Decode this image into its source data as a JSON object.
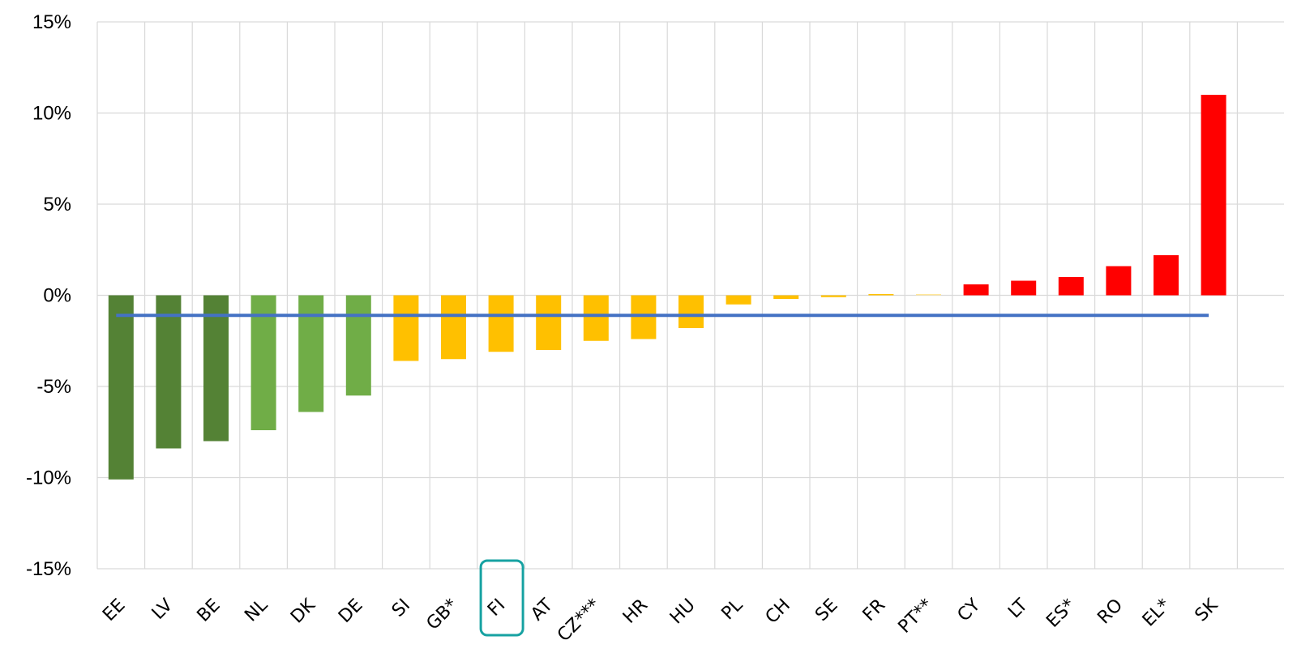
{
  "chart_data": {
    "type": "bar",
    "title": "",
    "xlabel": "",
    "ylabel": "",
    "categories": [
      "EE",
      "LV",
      "BE",
      "NL",
      "DK",
      "DE",
      "SI",
      "GB*",
      "FI",
      "AT",
      "CZ***",
      "HR",
      "HU",
      "PL",
      "CH",
      "SE",
      "FR",
      "PT**",
      "CY",
      "LT",
      "ES*",
      "RO",
      "EL*",
      "SK"
    ],
    "values": [
      -10.1,
      -8.4,
      -8.0,
      -7.4,
      -6.4,
      -5.5,
      -3.6,
      -3.5,
      -3.1,
      -3.0,
      -2.5,
      -2.4,
      -1.8,
      -0.5,
      -0.2,
      -0.1,
      0.0,
      0.05,
      0.6,
      0.8,
      1.0,
      1.6,
      2.2,
      11.0
    ],
    "bar_colors": [
      "#548235",
      "#548235",
      "#548235",
      "#70ad47",
      "#70ad47",
      "#70ad47",
      "#ffc000",
      "#ffc000",
      "#ffc000",
      "#ffc000",
      "#ffc000",
      "#ffc000",
      "#ffc000",
      "#ffc000",
      "#ffc000",
      "#ffc000",
      "#ffc000",
      "#ffe699",
      "#ff0000",
      "#ff0000",
      "#ff0000",
      "#ff0000",
      "#ff0000",
      "#ff0000"
    ],
    "reference_line": {
      "value": -1.1,
      "color": "#4472c4"
    },
    "highlighted_category": "FI",
    "highlight_color": "#17a2a2",
    "ylim": [
      -15,
      15
    ],
    "yticks": [
      15,
      10,
      5,
      0,
      -5,
      -10,
      -15
    ],
    "ytick_labels": [
      "15%",
      "10%",
      "5%",
      "0%",
      "-5%",
      "-10%",
      "-15%"
    ],
    "grid": true,
    "legend": "none"
  }
}
